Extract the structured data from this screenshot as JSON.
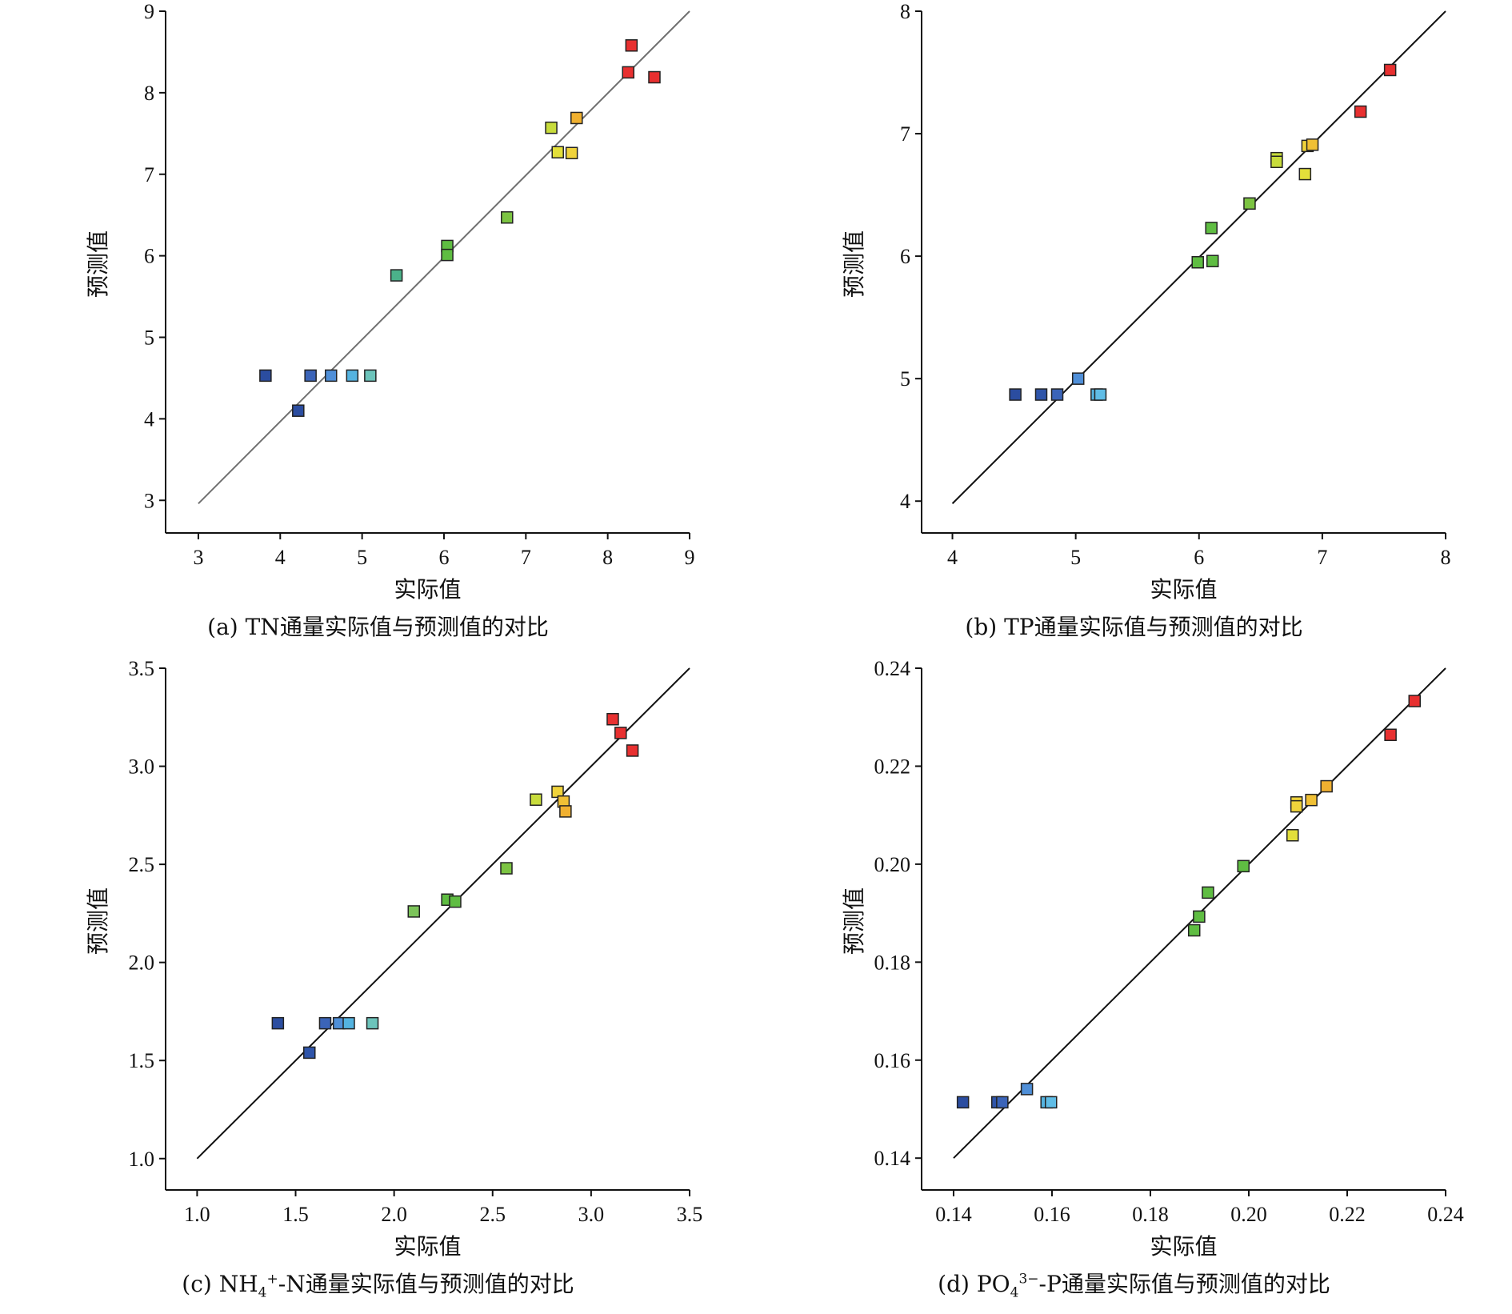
{
  "panels": [
    {
      "caption_prefix": "(a) ",
      "caption_main": "TN",
      "caption_sub": "",
      "caption_sup": "",
      "caption_rest": "通量实际值与预测值的对比",
      "chart_data": {
        "type": "scatter",
        "xlabel": "实际值",
        "ylabel": "预测值",
        "xlim": [
          2.6,
          9.0
        ],
        "ylim": [
          2.6,
          9.0
        ],
        "xticks": [
          3,
          4,
          5,
          6,
          7,
          8,
          9
        ],
        "yticks": [
          3,
          4,
          5,
          6,
          7,
          8,
          9
        ],
        "tick_labels_x": [
          "3",
          "4",
          "5",
          "6",
          "7",
          "8",
          "9"
        ],
        "tick_labels_y": [
          "3",
          "4",
          "5",
          "6",
          "7",
          "8",
          "9"
        ],
        "reference_line": [
          [
            3.0,
            2.96
          ],
          [
            9.0,
            9.0
          ]
        ],
        "reference_line_color": "#707070",
        "points": [
          {
            "x": 3.82,
            "y": 4.53,
            "color": "#2b4da0"
          },
          {
            "x": 4.22,
            "y": 4.1,
            "color": "#2b4da0"
          },
          {
            "x": 4.37,
            "y": 4.53,
            "color": "#3b64b8"
          },
          {
            "x": 4.62,
            "y": 4.53,
            "color": "#4f8fd8"
          },
          {
            "x": 4.88,
            "y": 4.53,
            "color": "#54b3e0"
          },
          {
            "x": 5.1,
            "y": 4.53,
            "color": "#6cc4bb"
          },
          {
            "x": 5.42,
            "y": 5.76,
            "color": "#4bb28a"
          },
          {
            "x": 6.04,
            "y": 6.12,
            "color": "#5fbd42"
          },
          {
            "x": 6.04,
            "y": 6.01,
            "color": "#5fbd42"
          },
          {
            "x": 6.77,
            "y": 6.47,
            "color": "#7cc442"
          },
          {
            "x": 7.31,
            "y": 7.57,
            "color": "#c8dc3c"
          },
          {
            "x": 7.39,
            "y": 7.27,
            "color": "#e3df3a"
          },
          {
            "x": 7.56,
            "y": 7.26,
            "color": "#f0d33b"
          },
          {
            "x": 7.62,
            "y": 7.69,
            "color": "#f0b030"
          },
          {
            "x": 8.25,
            "y": 8.25,
            "color": "#e83030"
          },
          {
            "x": 8.29,
            "y": 8.58,
            "color": "#e83030"
          },
          {
            "x": 8.57,
            "y": 8.19,
            "color": "#e83030"
          }
        ]
      }
    },
    {
      "caption_prefix": "(b) ",
      "caption_main": "TP",
      "caption_sub": "",
      "caption_sup": "",
      "caption_rest": "通量实际值与预测值的对比",
      "chart_data": {
        "type": "scatter",
        "xlabel": "实际值",
        "ylabel": "预测值",
        "xlim": [
          3.75,
          8.0
        ],
        "ylim": [
          3.74,
          8.0
        ],
        "xticks": [
          4,
          5,
          6,
          7,
          8
        ],
        "yticks": [
          4,
          5,
          6,
          7,
          8
        ],
        "tick_labels_x": [
          "4",
          "5",
          "6",
          "7",
          "8"
        ],
        "tick_labels_y": [
          "4",
          "5",
          "6",
          "7",
          "8"
        ],
        "reference_line": [
          [
            4.0,
            3.98
          ],
          [
            8.0,
            8.0
          ]
        ],
        "reference_line_color": "#111111",
        "points": [
          {
            "x": 4.51,
            "y": 4.87,
            "color": "#2b4da0"
          },
          {
            "x": 4.72,
            "y": 4.87,
            "color": "#2f55aa"
          },
          {
            "x": 4.85,
            "y": 4.87,
            "color": "#3b64b8"
          },
          {
            "x": 5.02,
            "y": 5.0,
            "color": "#4f8fd8"
          },
          {
            "x": 5.17,
            "y": 4.87,
            "color": "#54b3e0"
          },
          {
            "x": 5.2,
            "y": 4.87,
            "color": "#60bde6"
          },
          {
            "x": 5.99,
            "y": 5.95,
            "color": "#5fbd42"
          },
          {
            "x": 6.1,
            "y": 6.23,
            "color": "#5fbd42"
          },
          {
            "x": 6.11,
            "y": 5.96,
            "color": "#5fbd42"
          },
          {
            "x": 6.41,
            "y": 6.43,
            "color": "#7cc442"
          },
          {
            "x": 6.63,
            "y": 6.8,
            "color": "#c8dc3c"
          },
          {
            "x": 6.63,
            "y": 6.77,
            "color": "#c8dc3c"
          },
          {
            "x": 6.86,
            "y": 6.67,
            "color": "#e3df3a"
          },
          {
            "x": 6.88,
            "y": 6.9,
            "color": "#f0d33b"
          },
          {
            "x": 6.92,
            "y": 6.91,
            "color": "#f0c035"
          },
          {
            "x": 7.31,
            "y": 7.18,
            "color": "#e83030"
          },
          {
            "x": 7.55,
            "y": 7.52,
            "color": "#e83030"
          }
        ]
      }
    },
    {
      "caption_prefix": "(c) ",
      "caption_main": "NH",
      "caption_sub": "4",
      "caption_sup": "+",
      "caption_rest": "-N通量实际值与预测值的对比",
      "chart_data": {
        "type": "scatter",
        "xlabel": "实际值",
        "ylabel": "预测值",
        "xlim": [
          0.84,
          3.5
        ],
        "ylim": [
          0.84,
          3.5
        ],
        "xticks": [
          1.0,
          1.5,
          2.0,
          2.5,
          3.0,
          3.5
        ],
        "yticks": [
          1.0,
          1.5,
          2.0,
          2.5,
          3.0,
          3.5
        ],
        "tick_labels_x": [
          "1.0",
          "1.5",
          "2.0",
          "2.5",
          "3.0",
          "3.5"
        ],
        "tick_labels_y": [
          "1.0",
          "1.5",
          "2.0",
          "2.5",
          "3.0",
          "3.5"
        ],
        "reference_line": [
          [
            1.0,
            1.0
          ],
          [
            3.5,
            3.5
          ]
        ],
        "reference_line_color": "#111111",
        "points": [
          {
            "x": 1.41,
            "y": 1.69,
            "color": "#2b4da0"
          },
          {
            "x": 1.57,
            "y": 1.54,
            "color": "#2f55aa"
          },
          {
            "x": 1.65,
            "y": 1.69,
            "color": "#3b64b8"
          },
          {
            "x": 1.72,
            "y": 1.69,
            "color": "#4f8fd8"
          },
          {
            "x": 1.77,
            "y": 1.69,
            "color": "#54b3e0"
          },
          {
            "x": 1.89,
            "y": 1.69,
            "color": "#6cc4bb"
          },
          {
            "x": 2.1,
            "y": 2.26,
            "color": "#7cc45a"
          },
          {
            "x": 2.27,
            "y": 2.32,
            "color": "#5fbd42"
          },
          {
            "x": 2.31,
            "y": 2.31,
            "color": "#5fbd42"
          },
          {
            "x": 2.57,
            "y": 2.48,
            "color": "#7cc442"
          },
          {
            "x": 2.72,
            "y": 2.83,
            "color": "#c8dc3c"
          },
          {
            "x": 2.83,
            "y": 2.87,
            "color": "#f0d33b"
          },
          {
            "x": 2.86,
            "y": 2.82,
            "color": "#f0c035"
          },
          {
            "x": 2.87,
            "y": 2.77,
            "color": "#f0b030"
          },
          {
            "x": 3.11,
            "y": 3.24,
            "color": "#e83030"
          },
          {
            "x": 3.15,
            "y": 3.17,
            "color": "#e83030"
          },
          {
            "x": 3.21,
            "y": 3.08,
            "color": "#e83030"
          }
        ]
      }
    },
    {
      "caption_prefix": "(d) ",
      "caption_main": "PO",
      "caption_sub": "4",
      "caption_sup": "3−",
      "caption_rest": "-P通量实际值与预测值的对比",
      "chart_data": {
        "type": "scatter",
        "xlabel": "实际值",
        "ylabel": "预测值",
        "xlim": [
          0.1335,
          0.24
        ],
        "ylim": [
          0.1335,
          0.24
        ],
        "xticks": [
          0.14,
          0.16,
          0.18,
          0.2,
          0.22,
          0.24
        ],
        "yticks": [
          0.14,
          0.16,
          0.18,
          0.2,
          0.22,
          0.24
        ],
        "tick_labels_x": [
          "0.14",
          "0.16",
          "0.18",
          "0.20",
          "0.22",
          "0.24"
        ],
        "tick_labels_y": [
          "0.14",
          "0.16",
          "0.18",
          "0.20",
          "0.22",
          "0.24"
        ],
        "reference_line": [
          [
            0.14,
            0.14
          ],
          [
            0.24,
            0.24
          ]
        ],
        "reference_line_color": "#111111",
        "points": [
          {
            "x": 0.1419,
            "y": 0.1514,
            "color": "#2b4da0"
          },
          {
            "x": 0.1489,
            "y": 0.1514,
            "color": "#2f55aa"
          },
          {
            "x": 0.1499,
            "y": 0.1514,
            "color": "#3b64b8"
          },
          {
            "x": 0.1549,
            "y": 0.1541,
            "color": "#4f8fd8"
          },
          {
            "x": 0.1589,
            "y": 0.1514,
            "color": "#54b3e0"
          },
          {
            "x": 0.1598,
            "y": 0.1514,
            "color": "#60bde6"
          },
          {
            "x": 0.1889,
            "y": 0.1865,
            "color": "#5fbd42"
          },
          {
            "x": 0.1899,
            "y": 0.1893,
            "color": "#5fbd42"
          },
          {
            "x": 0.1917,
            "y": 0.1942,
            "color": "#5fbd42"
          },
          {
            "x": 0.1989,
            "y": 0.1996,
            "color": "#5fbd42"
          },
          {
            "x": 0.2089,
            "y": 0.2059,
            "color": "#e3df3a"
          },
          {
            "x": 0.2097,
            "y": 0.2126,
            "color": "#f0d33b"
          },
          {
            "x": 0.2097,
            "y": 0.2118,
            "color": "#f0d33b"
          },
          {
            "x": 0.2127,
            "y": 0.2131,
            "color": "#f0c035"
          },
          {
            "x": 0.2158,
            "y": 0.2159,
            "color": "#f0b030"
          },
          {
            "x": 0.2288,
            "y": 0.2264,
            "color": "#e83030"
          },
          {
            "x": 0.2337,
            "y": 0.2333,
            "color": "#e83030"
          }
        ]
      }
    }
  ]
}
